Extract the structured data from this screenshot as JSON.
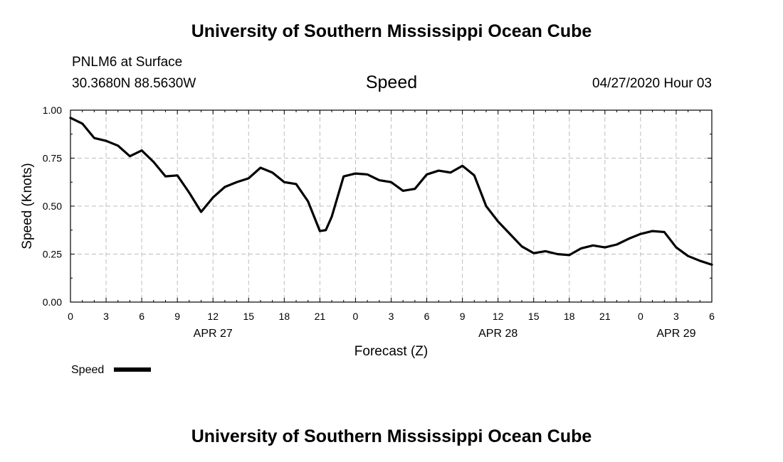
{
  "page": {
    "title_top": "University of Southern Mississippi Ocean Cube",
    "title_bottom": "University of Southern Mississippi Ocean Cube",
    "station": "PNLM6 at Surface",
    "coords": "30.3680N 88.5630W",
    "chart_title": "Speed",
    "run_time": "04/27/2020 Hour 03"
  },
  "chart_data": {
    "type": "line",
    "title": "Speed",
    "xlabel": "Forecast (Z)",
    "ylabel": "Speed (Knots)",
    "ylim": [
      0,
      1.0
    ],
    "xlim": [
      0,
      54
    ],
    "grid": true,
    "y_ticks": [
      "0.00",
      "0.25",
      "0.50",
      "0.75",
      "1.00"
    ],
    "x_ticks": [
      "0",
      "3",
      "6",
      "9",
      "12",
      "15",
      "18",
      "21",
      "0",
      "3",
      "6",
      "9",
      "12",
      "15",
      "18",
      "21",
      "0",
      "3",
      "6"
    ],
    "date_labels": [
      {
        "label": "APR 27",
        "x": 12
      },
      {
        "label": "APR 28",
        "x": 36
      },
      {
        "label": "APR 29",
        "x": 51
      }
    ],
    "legend": {
      "label": "Speed",
      "position": "bottom-left"
    },
    "series": [
      {
        "name": "Speed",
        "color": "#000000",
        "x": [
          0,
          1,
          2,
          3,
          4,
          5,
          6,
          7,
          8,
          9,
          10,
          11,
          12,
          13,
          14,
          15,
          16,
          17,
          18,
          19,
          20,
          21,
          21.5,
          22,
          23,
          24,
          25,
          26,
          27,
          28,
          29,
          30,
          31,
          32,
          33,
          34,
          35,
          36,
          37,
          38,
          39,
          40,
          41,
          42,
          43,
          44,
          45,
          46,
          47,
          48,
          49,
          50,
          51,
          52,
          53,
          54
        ],
        "y": [
          0.96,
          0.93,
          0.855,
          0.84,
          0.815,
          0.76,
          0.79,
          0.73,
          0.655,
          0.66,
          0.57,
          0.47,
          0.545,
          0.6,
          0.625,
          0.645,
          0.7,
          0.675,
          0.625,
          0.615,
          0.525,
          0.37,
          0.375,
          0.445,
          0.655,
          0.67,
          0.665,
          0.635,
          0.625,
          0.58,
          0.59,
          0.665,
          0.685,
          0.675,
          0.71,
          0.66,
          0.5,
          0.42,
          0.355,
          0.29,
          0.255,
          0.265,
          0.25,
          0.245,
          0.28,
          0.295,
          0.285,
          0.3,
          0.33,
          0.355,
          0.37,
          0.365,
          0.285,
          0.24,
          0.215,
          0.195
        ]
      }
    ]
  }
}
